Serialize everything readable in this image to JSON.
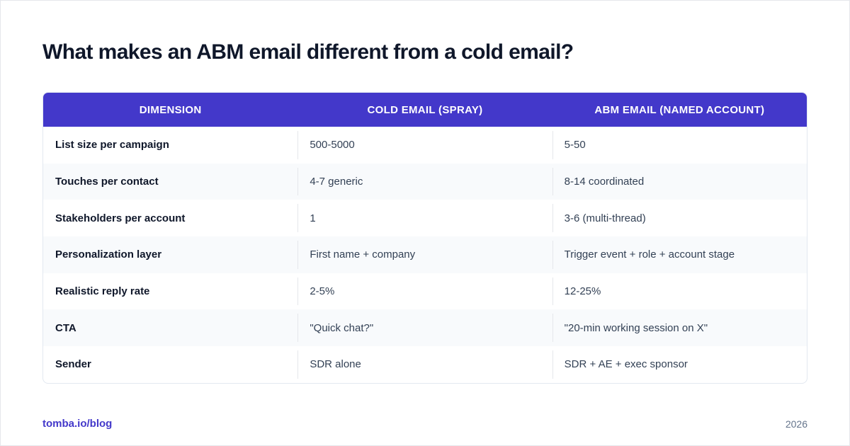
{
  "title": "What makes an ABM email different from a cold email?",
  "table": {
    "headers": [
      "DIMENSION",
      "COLD EMAIL (SPRAY)",
      "ABM EMAIL (NAMED ACCOUNT)"
    ],
    "rows": [
      [
        "List size per campaign",
        "500-5000",
        "5-50"
      ],
      [
        "Touches per contact",
        "4-7 generic",
        "8-14 coordinated"
      ],
      [
        "Stakeholders per account",
        "1",
        "3-6 (multi-thread)"
      ],
      [
        "Personalization layer",
        "First name + company",
        "Trigger event + role + account stage"
      ],
      [
        "Realistic reply rate",
        "2-5%",
        "12-25%"
      ],
      [
        "CTA",
        "\"Quick chat?\"",
        "\"20-min working session on X\""
      ],
      [
        "Sender",
        "SDR alone",
        "SDR + AE + exec sponsor"
      ]
    ]
  },
  "footer": {
    "link": "tomba.io/blog",
    "year": "2026"
  },
  "colors": {
    "accent": "#4338ca",
    "title": "#0f172a",
    "row_alt": "#f8fafc"
  }
}
